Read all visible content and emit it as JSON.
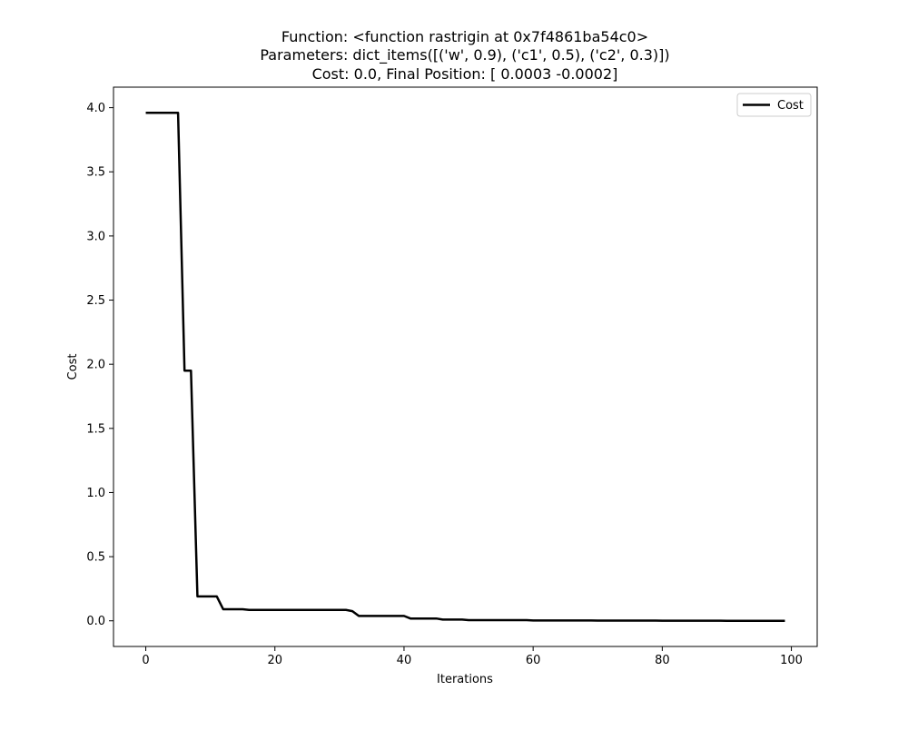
{
  "chart_data": {
    "type": "line",
    "title": [
      "Function: <function rastrigin at 0x7f4861ba54c0>",
      "Parameters: dict_items([('w', 0.9), ('c1', 0.5), ('c2', 0.3)])",
      "Cost: 0.0, Final Position: [ 0.0003 -0.0002]"
    ],
    "xlabel": "Iterations",
    "ylabel": "Cost",
    "xlim": [
      -5,
      104
    ],
    "ylim": [
      -0.2,
      4.16
    ],
    "xticks": [
      0,
      20,
      40,
      60,
      80,
      100
    ],
    "xtick_labels": [
      "0",
      "20",
      "40",
      "60",
      "80",
      "100"
    ],
    "yticks": [
      0.0,
      0.5,
      1.0,
      1.5,
      2.0,
      2.5,
      3.0,
      3.5,
      4.0
    ],
    "ytick_labels": [
      "0.0",
      "0.5",
      "1.0",
      "1.5",
      "2.0",
      "2.5",
      "3.0",
      "3.5",
      "4.0"
    ],
    "grid": false,
    "legend_position": "top-right",
    "series": [
      {
        "name": "Cost",
        "color": "#000000",
        "x": [
          0,
          1,
          2,
          3,
          4,
          5,
          6,
          7,
          8,
          9,
          10,
          11,
          12,
          13,
          14,
          15,
          16,
          17,
          18,
          19,
          20,
          21,
          22,
          23,
          24,
          25,
          26,
          27,
          28,
          29,
          30,
          31,
          32,
          33,
          34,
          35,
          36,
          37,
          38,
          39,
          40,
          41,
          42,
          43,
          44,
          45,
          46,
          47,
          48,
          49,
          50,
          51,
          52,
          53,
          54,
          55,
          56,
          57,
          58,
          59,
          60,
          61,
          62,
          63,
          64,
          65,
          66,
          67,
          68,
          69,
          70,
          71,
          72,
          73,
          74,
          75,
          76,
          77,
          78,
          79,
          80,
          81,
          82,
          83,
          84,
          85,
          86,
          87,
          88,
          89,
          90,
          91,
          92,
          93,
          94,
          95,
          96,
          97,
          98,
          99
        ],
        "y": [
          3.96,
          3.96,
          3.96,
          3.96,
          3.96,
          3.96,
          1.95,
          1.95,
          0.19,
          0.19,
          0.19,
          0.19,
          0.09,
          0.09,
          0.09,
          0.09,
          0.085,
          0.085,
          0.085,
          0.085,
          0.085,
          0.085,
          0.085,
          0.085,
          0.085,
          0.085,
          0.085,
          0.085,
          0.085,
          0.085,
          0.085,
          0.085,
          0.075,
          0.038,
          0.038,
          0.038,
          0.038,
          0.038,
          0.038,
          0.038,
          0.038,
          0.018,
          0.018,
          0.018,
          0.018,
          0.018,
          0.01,
          0.01,
          0.01,
          0.01,
          0.005,
          0.005,
          0.005,
          0.005,
          0.005,
          0.005,
          0.005,
          0.005,
          0.005,
          0.005,
          0.003,
          0.003,
          0.003,
          0.003,
          0.003,
          0.003,
          0.003,
          0.003,
          0.003,
          0.003,
          0.002,
          0.002,
          0.002,
          0.002,
          0.002,
          0.002,
          0.002,
          0.002,
          0.002,
          0.002,
          0.001,
          0.001,
          0.001,
          0.001,
          0.001,
          0.001,
          0.001,
          0.001,
          0.001,
          0.001,
          0.0,
          0.0,
          0.0,
          0.0,
          0.0,
          0.0,
          0.0,
          0.0,
          0.0,
          0.0
        ]
      }
    ]
  }
}
